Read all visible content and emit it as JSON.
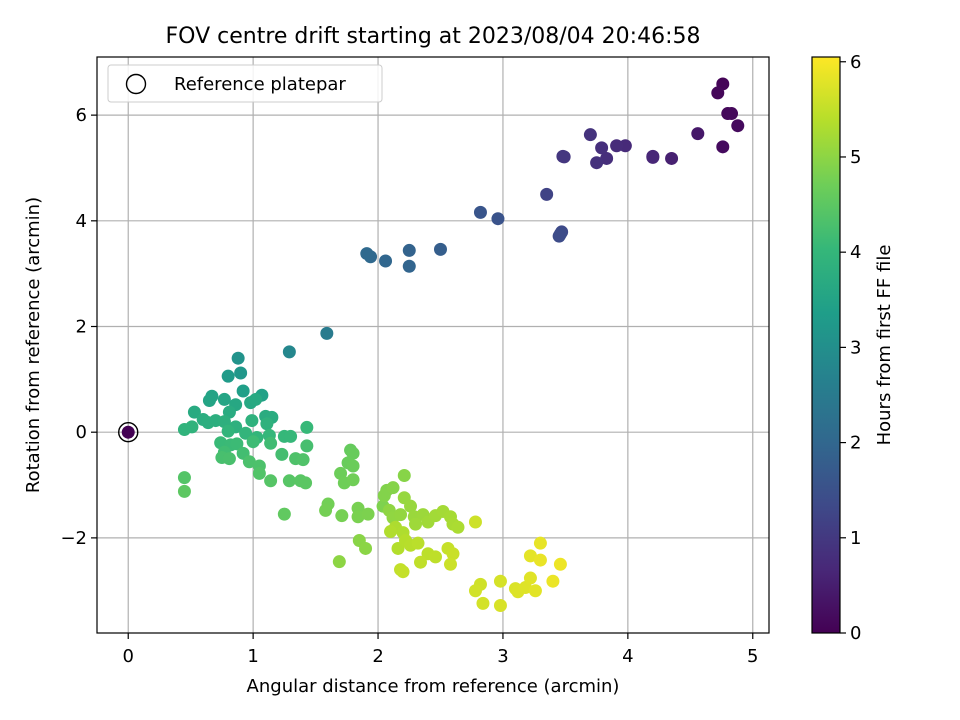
{
  "chart_data": {
    "type": "scatter",
    "title": "FOV centre drift starting at 2023/08/04 20:46:58",
    "xlabel": "Angular distance from reference (arcmin)",
    "ylabel": "Rotation from reference (arcmin)",
    "xlim": [
      -0.25,
      5.13
    ],
    "ylim": [
      -3.8,
      7.1
    ],
    "xticks": [
      0,
      1,
      2,
      3,
      4,
      5
    ],
    "xtick_labels": [
      "0",
      "1",
      "2",
      "3",
      "4",
      "5"
    ],
    "yticks": [
      -2,
      0,
      2,
      4,
      6
    ],
    "ytick_labels": [
      "−2",
      "0",
      "2",
      "4",
      "6"
    ],
    "grid": true,
    "legend_position": "top-left",
    "legend": [
      {
        "label": "Reference platepar",
        "marker": "open-circle"
      }
    ],
    "reference_point": {
      "x": 0,
      "y": 0,
      "hours": 0
    },
    "colormap": "viridis",
    "colorbar": {
      "label": "Hours from first FF file",
      "range": [
        0,
        6.05
      ],
      "ticks": [
        0,
        1,
        2,
        3,
        4,
        5,
        6
      ],
      "tick_labels": [
        "0",
        "1",
        "2",
        "3",
        "4",
        "5",
        "6"
      ]
    },
    "colors": {
      "cmap_stops": [
        "#440154",
        "#482878",
        "#3e4a89",
        "#31688e",
        "#26828e",
        "#1f9e89",
        "#35b779",
        "#6ece58",
        "#b5de2b",
        "#fde725"
      ],
      "grid": "#b0b0b0"
    },
    "points": [
      {
        "x": 4.76,
        "y": 6.59,
        "h": 0.05
      },
      {
        "x": 4.72,
        "y": 6.42,
        "h": 0.1
      },
      {
        "x": 4.8,
        "y": 6.03,
        "h": 0.12
      },
      {
        "x": 4.83,
        "y": 6.03,
        "h": 0.14
      },
      {
        "x": 4.88,
        "y": 5.8,
        "h": 0.16
      },
      {
        "x": 4.76,
        "y": 5.4,
        "h": 0.18
      },
      {
        "x": 4.56,
        "y": 5.65,
        "h": 0.4
      },
      {
        "x": 4.35,
        "y": 5.18,
        "h": 0.55
      },
      {
        "x": 4.2,
        "y": 5.22,
        "h": 0.65
      },
      {
        "x": 4.2,
        "y": 5.2,
        "h": 0.66
      },
      {
        "x": 3.98,
        "y": 5.42,
        "h": 0.72
      },
      {
        "x": 3.91,
        "y": 5.42,
        "h": 0.76
      },
      {
        "x": 3.83,
        "y": 5.18,
        "h": 0.8
      },
      {
        "x": 3.79,
        "y": 5.38,
        "h": 0.82
      },
      {
        "x": 3.75,
        "y": 5.1,
        "h": 0.85
      },
      {
        "x": 3.7,
        "y": 5.63,
        "h": 0.88
      },
      {
        "x": 3.49,
        "y": 5.21,
        "h": 0.95
      },
      {
        "x": 3.48,
        "y": 5.22,
        "h": 0.96
      },
      {
        "x": 3.35,
        "y": 4.5,
        "h": 1.2
      },
      {
        "x": 3.47,
        "y": 3.79,
        "h": 1.35
      },
      {
        "x": 3.46,
        "y": 3.75,
        "h": 1.38
      },
      {
        "x": 3.45,
        "y": 3.71,
        "h": 1.4
      },
      {
        "x": 2.96,
        "y": 4.04,
        "h": 1.55
      },
      {
        "x": 2.82,
        "y": 4.16,
        "h": 1.6
      },
      {
        "x": 2.5,
        "y": 3.46,
        "h": 1.8
      },
      {
        "x": 2.25,
        "y": 3.44,
        "h": 1.9
      },
      {
        "x": 2.25,
        "y": 3.14,
        "h": 1.95
      },
      {
        "x": 2.06,
        "y": 3.24,
        "h": 2.0
      },
      {
        "x": 1.94,
        "y": 3.32,
        "h": 2.05
      },
      {
        "x": 1.91,
        "y": 3.38,
        "h": 2.08
      },
      {
        "x": 1.59,
        "y": 1.87,
        "h": 2.5
      },
      {
        "x": 1.29,
        "y": 1.52,
        "h": 2.8
      },
      {
        "x": 0.88,
        "y": 1.4,
        "h": 3.1
      },
      {
        "x": 0.9,
        "y": 1.12,
        "h": 3.2
      },
      {
        "x": 0.8,
        "y": 1.06,
        "h": 3.3
      },
      {
        "x": 0.92,
        "y": 0.78,
        "h": 3.4
      },
      {
        "x": 1.07,
        "y": 0.7,
        "h": 3.45
      },
      {
        "x": 0.67,
        "y": 0.68,
        "h": 3.5
      },
      {
        "x": 0.65,
        "y": 0.6,
        "h": 3.52
      },
      {
        "x": 0.77,
        "y": 0.62,
        "h": 3.55
      },
      {
        "x": 0.86,
        "y": 0.52,
        "h": 3.6
      },
      {
        "x": 0.98,
        "y": 0.56,
        "h": 3.62
      },
      {
        "x": 1.02,
        "y": 0.62,
        "h": 3.65
      },
      {
        "x": 0.53,
        "y": 0.38,
        "h": 3.68
      },
      {
        "x": 0.81,
        "y": 0.38,
        "h": 3.7
      },
      {
        "x": 1.1,
        "y": 0.3,
        "h": 3.72
      },
      {
        "x": 1.15,
        "y": 0.28,
        "h": 3.74
      },
      {
        "x": 0.6,
        "y": 0.24,
        "h": 3.76
      },
      {
        "x": 0.64,
        "y": 0.18,
        "h": 3.78
      },
      {
        "x": 0.7,
        "y": 0.22,
        "h": 3.8
      },
      {
        "x": 0.77,
        "y": 0.2,
        "h": 3.82
      },
      {
        "x": 0.86,
        "y": 0.1,
        "h": 3.84
      },
      {
        "x": 0.99,
        "y": 0.22,
        "h": 3.86
      },
      {
        "x": 1.11,
        "y": 0.16,
        "h": 3.88
      },
      {
        "x": 0.51,
        "y": 0.1,
        "h": 3.9
      },
      {
        "x": 0.45,
        "y": 0.05,
        "h": 3.92
      },
      {
        "x": 0.8,
        "y": 0.02,
        "h": 3.94
      },
      {
        "x": 0.94,
        "y": -0.02,
        "h": 3.96
      },
      {
        "x": 1.03,
        "y": -0.1,
        "h": 3.98
      },
      {
        "x": 1.13,
        "y": -0.06,
        "h": 4.0
      },
      {
        "x": 1.25,
        "y": -0.08,
        "h": 4.02
      },
      {
        "x": 1.3,
        "y": -0.08,
        "h": 4.04
      },
      {
        "x": 1.43,
        "y": 0.09,
        "h": 4.06
      },
      {
        "x": 0.74,
        "y": -0.2,
        "h": 4.08
      },
      {
        "x": 0.82,
        "y": -0.24,
        "h": 4.1
      },
      {
        "x": 0.87,
        "y": -0.22,
        "h": 4.12
      },
      {
        "x": 1.0,
        "y": -0.18,
        "h": 4.14
      },
      {
        "x": 1.14,
        "y": -0.21,
        "h": 4.16
      },
      {
        "x": 0.77,
        "y": -0.38,
        "h": 4.18
      },
      {
        "x": 0.92,
        "y": -0.4,
        "h": 4.2
      },
      {
        "x": 1.23,
        "y": -0.42,
        "h": 4.22
      },
      {
        "x": 1.43,
        "y": -0.26,
        "h": 4.24
      },
      {
        "x": 0.75,
        "y": -0.48,
        "h": 4.26
      },
      {
        "x": 0.81,
        "y": -0.5,
        "h": 4.28
      },
      {
        "x": 0.97,
        "y": -0.56,
        "h": 4.3
      },
      {
        "x": 1.05,
        "y": -0.64,
        "h": 4.32
      },
      {
        "x": 1.34,
        "y": -0.5,
        "h": 4.34
      },
      {
        "x": 1.4,
        "y": -0.52,
        "h": 4.36
      },
      {
        "x": 1.05,
        "y": -0.78,
        "h": 4.38
      },
      {
        "x": 0.45,
        "y": -0.86,
        "h": 4.4
      },
      {
        "x": 1.14,
        "y": -0.92,
        "h": 4.42
      },
      {
        "x": 1.29,
        "y": -0.92,
        "h": 4.44
      },
      {
        "x": 1.38,
        "y": -0.92,
        "h": 4.46
      },
      {
        "x": 1.42,
        "y": -0.96,
        "h": 4.48
      },
      {
        "x": 0.45,
        "y": -1.12,
        "h": 4.5
      },
      {
        "x": 1.25,
        "y": -1.55,
        "h": 4.55
      },
      {
        "x": 1.78,
        "y": -0.34,
        "h": 4.6
      },
      {
        "x": 1.8,
        "y": -0.4,
        "h": 4.62
      },
      {
        "x": 1.76,
        "y": -0.58,
        "h": 4.64
      },
      {
        "x": 1.8,
        "y": -0.64,
        "h": 4.66
      },
      {
        "x": 1.7,
        "y": -0.78,
        "h": 4.68
      },
      {
        "x": 1.73,
        "y": -0.96,
        "h": 4.7
      },
      {
        "x": 1.8,
        "y": -0.9,
        "h": 4.72
      },
      {
        "x": 1.6,
        "y": -1.36,
        "h": 4.74
      },
      {
        "x": 1.58,
        "y": -1.48,
        "h": 4.76
      },
      {
        "x": 1.71,
        "y": -1.58,
        "h": 4.78
      },
      {
        "x": 1.84,
        "y": -1.44,
        "h": 4.8
      },
      {
        "x": 1.84,
        "y": -1.6,
        "h": 4.82
      },
      {
        "x": 1.92,
        "y": -1.55,
        "h": 4.84
      },
      {
        "x": 2.04,
        "y": -1.4,
        "h": 4.86
      },
      {
        "x": 2.07,
        "y": -1.1,
        "h": 4.88
      },
      {
        "x": 2.05,
        "y": -1.2,
        "h": 4.9
      },
      {
        "x": 2.12,
        "y": -1.05,
        "h": 4.92
      },
      {
        "x": 2.21,
        "y": -0.82,
        "h": 4.94
      },
      {
        "x": 1.85,
        "y": -2.05,
        "h": 4.96
      },
      {
        "x": 1.9,
        "y": -2.2,
        "h": 4.98
      },
      {
        "x": 1.69,
        "y": -2.45,
        "h": 5.0
      },
      {
        "x": 2.09,
        "y": -1.48,
        "h": 5.02
      },
      {
        "x": 2.12,
        "y": -1.62,
        "h": 5.04
      },
      {
        "x": 2.18,
        "y": -1.56,
        "h": 5.06
      },
      {
        "x": 2.21,
        "y": -1.24,
        "h": 5.08
      },
      {
        "x": 2.26,
        "y": -1.4,
        "h": 5.1
      },
      {
        "x": 2.29,
        "y": -1.6,
        "h": 5.12
      },
      {
        "x": 2.36,
        "y": -1.56,
        "h": 5.14
      },
      {
        "x": 2.3,
        "y": -1.74,
        "h": 5.16
      },
      {
        "x": 2.4,
        "y": -1.7,
        "h": 5.18
      },
      {
        "x": 2.46,
        "y": -1.58,
        "h": 5.2
      },
      {
        "x": 2.52,
        "y": -1.5,
        "h": 5.22
      },
      {
        "x": 2.58,
        "y": -1.6,
        "h": 5.24
      },
      {
        "x": 2.6,
        "y": -1.74,
        "h": 5.26
      },
      {
        "x": 2.64,
        "y": -1.8,
        "h": 5.28
      },
      {
        "x": 2.14,
        "y": -1.8,
        "h": 5.3
      },
      {
        "x": 2.2,
        "y": -1.9,
        "h": 5.32
      },
      {
        "x": 2.1,
        "y": -1.88,
        "h": 5.34
      },
      {
        "x": 2.16,
        "y": -2.2,
        "h": 5.36
      },
      {
        "x": 2.22,
        "y": -2.05,
        "h": 5.38
      },
      {
        "x": 2.26,
        "y": -2.14,
        "h": 5.4
      },
      {
        "x": 2.32,
        "y": -2.1,
        "h": 5.42
      },
      {
        "x": 2.4,
        "y": -2.3,
        "h": 5.44
      },
      {
        "x": 2.46,
        "y": -2.36,
        "h": 5.46
      },
      {
        "x": 2.34,
        "y": -2.46,
        "h": 5.48
      },
      {
        "x": 2.18,
        "y": -2.6,
        "h": 5.5
      },
      {
        "x": 2.2,
        "y": -2.64,
        "h": 5.52
      },
      {
        "x": 2.56,
        "y": -2.2,
        "h": 5.54
      },
      {
        "x": 2.6,
        "y": -2.3,
        "h": 5.56
      },
      {
        "x": 2.58,
        "y": -2.5,
        "h": 5.58
      },
      {
        "x": 2.78,
        "y": -1.7,
        "h": 5.6
      },
      {
        "x": 2.82,
        "y": -2.88,
        "h": 5.62
      },
      {
        "x": 2.78,
        "y": -3.0,
        "h": 5.64
      },
      {
        "x": 2.84,
        "y": -3.24,
        "h": 5.66
      },
      {
        "x": 2.98,
        "y": -2.82,
        "h": 5.68
      },
      {
        "x": 2.98,
        "y": -3.28,
        "h": 5.7
      },
      {
        "x": 3.1,
        "y": -2.96,
        "h": 5.72
      },
      {
        "x": 3.12,
        "y": -3.02,
        "h": 5.74
      },
      {
        "x": 3.18,
        "y": -2.94,
        "h": 5.76
      },
      {
        "x": 3.22,
        "y": -2.76,
        "h": 5.78
      },
      {
        "x": 3.26,
        "y": -3.0,
        "h": 5.8
      },
      {
        "x": 3.22,
        "y": -2.34,
        "h": 5.82
      },
      {
        "x": 3.3,
        "y": -2.1,
        "h": 5.84
      },
      {
        "x": 3.3,
        "y": -2.42,
        "h": 5.86
      },
      {
        "x": 3.4,
        "y": -2.82,
        "h": 5.88
      },
      {
        "x": 3.46,
        "y": -2.5,
        "h": 5.9
      }
    ]
  }
}
